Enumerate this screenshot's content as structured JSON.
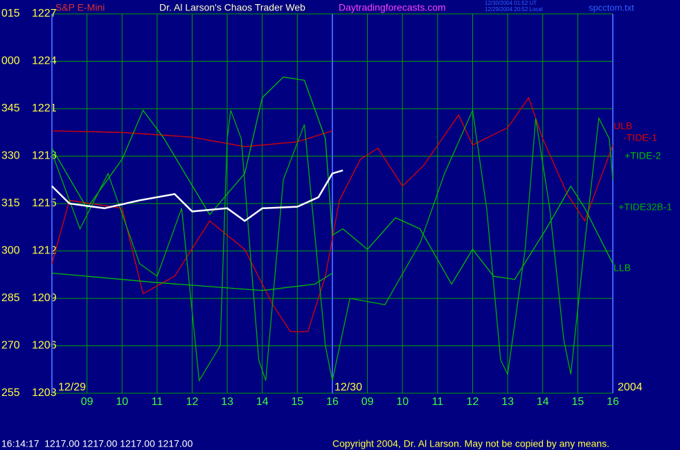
{
  "chart_data": {
    "type": "line",
    "title": "Dr. Al Larson's Chaos Trader Web",
    "instrument": "S&P E-Mini",
    "site": "Daytradingforecasts.com",
    "timestamps": [
      "12/30/2004 01:52 UT",
      "12/29/2004 20:52 Local"
    ],
    "file": "spcctom.txt",
    "date_labels": [
      "12/29",
      "12/30",
      "2004"
    ],
    "status": "16:14:17  1217.00 1217.00 1217.00 1217.00",
    "copyright": "Copyright 2004, Dr. Al Larson. May not be copied by any means.",
    "xlim": [
      0,
      16
    ],
    "xticks": [
      {
        "value": 1,
        "label": "09"
      },
      {
        "value": 2,
        "label": "10"
      },
      {
        "value": 3,
        "label": "11"
      },
      {
        "value": 4,
        "label": "12"
      },
      {
        "value": 5,
        "label": "13"
      },
      {
        "value": 6,
        "label": "14"
      },
      {
        "value": 7,
        "label": "15"
      },
      {
        "value": 8,
        "label": "16"
      },
      {
        "value": 9,
        "label": "09"
      },
      {
        "value": 10,
        "label": "10"
      },
      {
        "value": 11,
        "label": "11"
      },
      {
        "value": 12,
        "label": "12"
      },
      {
        "value": 13,
        "label": "13"
      },
      {
        "value": 14,
        "label": "14"
      },
      {
        "value": 15,
        "label": "15"
      },
      {
        "value": 16,
        "label": "16"
      }
    ],
    "ylim": [
      1203,
      1227
    ],
    "yticks": [
      1203,
      1206,
      1209,
      1212,
      1215,
      1218,
      1221,
      1224,
      1227
    ],
    "angle_labels": [
      "255",
      "270",
      "285",
      "300",
      "315",
      "330",
      "345",
      "000",
      "015"
    ],
    "grid": true,
    "series": [
      {
        "name": "ULB",
        "color": "#e00000",
        "x": [
          0,
          2,
          4,
          5.5,
          7,
          8
        ],
        "values": [
          1219.6,
          1219.5,
          1219.2,
          1218.6,
          1218.9,
          1219.6
        ]
      },
      {
        "name": "-TIDE-1",
        "color": "#e00000",
        "x": [
          0,
          0.5,
          2,
          2.6,
          3.5,
          4.5,
          5.5,
          6.3,
          6.8,
          7.3,
          7.8,
          8.2,
          8.8,
          9.3,
          10,
          10.6,
          11.6,
          12,
          13,
          13.6,
          14,
          14.7,
          15.2,
          16
        ],
        "values": [
          1211.2,
          1215.2,
          1214.7,
          1209.3,
          1210.4,
          1213.9,
          1212.1,
          1208.6,
          1206.9,
          1206.9,
          1210.4,
          1215.2,
          1217.8,
          1218.5,
          1216.1,
          1217.4,
          1220.6,
          1218.7,
          1219.8,
          1221.7,
          1219.1,
          1215.6,
          1213.9,
          1218.7
        ]
      },
      {
        "name": "+TIDE-2",
        "color": "#00c000",
        "x": [
          0,
          1,
          2,
          2.6,
          3.2,
          4.5,
          5.5,
          6,
          6.6,
          7.2,
          7.8,
          8,
          8.3,
          9,
          9.8,
          10.5,
          11.4,
          12,
          12.6,
          13.2,
          14.1,
          14.8,
          15.2,
          16
        ],
        "values": [
          1218.5,
          1214.7,
          1217.8,
          1220.9,
          1219.1,
          1214.3,
          1216.9,
          1221.7,
          1223.0,
          1222.8,
          1219.1,
          1213.0,
          1213.4,
          1212.1,
          1214.1,
          1213.4,
          1209.9,
          1212.1,
          1210.4,
          1210.2,
          1213.4,
          1216.1,
          1214.7,
          1211.2
        ]
      },
      {
        "name": "+TIDE32B-1",
        "color": "#00b000",
        "x": [
          0,
          0.8,
          1.6,
          2.5,
          3,
          3.7,
          4.2,
          4.8,
          5,
          5.1,
          5.4,
          5.9,
          6.1,
          6.6,
          7.2,
          7.8,
          8,
          8.5,
          9.5,
          10.5,
          11.2,
          12,
          12.4,
          12.8,
          13,
          13.5,
          13.8,
          14.2,
          14.6,
          14.8,
          15.2,
          15.6,
          15.9,
          16
        ],
        "values": [
          1218.2,
          1213.4,
          1216.9,
          1211.2,
          1210.4,
          1214.7,
          1203.8,
          1206.0,
          1219.1,
          1220.9,
          1219.1,
          1205.1,
          1203.8,
          1216.5,
          1220.0,
          1206.0,
          1203.8,
          1209.0,
          1208.6,
          1212.5,
          1216.9,
          1220.9,
          1214.7,
          1205.1,
          1204.2,
          1212.1,
          1220.4,
          1214.7,
          1206.4,
          1204.2,
          1212.5,
          1220.4,
          1219.1,
          1216.5
        ]
      },
      {
        "name": "LLB",
        "color": "#00c000",
        "x": [
          0,
          3,
          6,
          7.5,
          8
        ],
        "values": [
          1210.6,
          1210.0,
          1209.5,
          1209.9,
          1210.6
        ]
      },
      {
        "color": "#ffffff",
        "x": [
          0,
          0.5,
          1.5,
          2.5,
          3.5,
          4,
          5,
          5.5,
          6,
          7,
          7.6,
          8,
          8.3
        ],
        "values": [
          1216.1,
          1215.0,
          1214.7,
          1215.2,
          1215.6,
          1214.5,
          1214.7,
          1213.9,
          1214.7,
          1214.8,
          1215.4,
          1216.9,
          1217.1
        ]
      }
    ]
  }
}
